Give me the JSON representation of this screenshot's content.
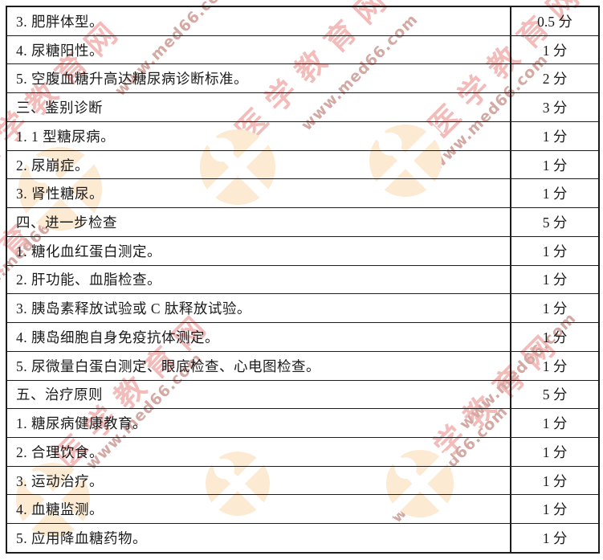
{
  "watermark": {
    "brand_text": "医学教育网",
    "url_text": "www.med66.com",
    "brand_color": "#f2bcba",
    "url_color": "#d4a9a3",
    "logo_color": "#fcead2"
  },
  "table": {
    "rows": [
      {
        "label": "3. 肥胖体型。",
        "score": "0.5 分"
      },
      {
        "label": "4. 尿糖阳性。",
        "score": "1 分"
      },
      {
        "label": "5. 空腹血糖升高达糖尿病诊断标准。",
        "score": "2 分"
      },
      {
        "label": "三、鉴别诊断",
        "score": "3 分"
      },
      {
        "label": "1. 1 型糖尿病。",
        "score": "1 分"
      },
      {
        "label": "2. 尿崩症。",
        "score": "1 分"
      },
      {
        "label": "3. 肾性糖尿。",
        "score": "1 分"
      },
      {
        "label": "四、进一步检查",
        "score": "5 分"
      },
      {
        "label": "1. 糖化血红蛋白测定。",
        "score": "1 分"
      },
      {
        "label": "2. 肝功能、血脂检查。",
        "score": "1 分"
      },
      {
        "label": "3. 胰岛素释放试验或 C 肽释放试验。",
        "score": "1 分"
      },
      {
        "label": "4. 胰岛细胞自身免疫抗体测定。",
        "score": "1 分"
      },
      {
        "label": "5. 尿微量白蛋白测定、眼底检查、心电图检查。",
        "score": "1 分"
      },
      {
        "label": "五、治疗原则",
        "score": "5 分"
      },
      {
        "label": "1. 糖尿病健康教育。",
        "score": "1 分"
      },
      {
        "label": "2. 合理饮食。",
        "score": "1 分"
      },
      {
        "label": "3. 运动治疗。",
        "score": "1 分"
      },
      {
        "label": "4. 血糖监测。",
        "score": "1 分"
      },
      {
        "label": "5. 应用降血糖药物。",
        "score": "1 分"
      }
    ]
  }
}
